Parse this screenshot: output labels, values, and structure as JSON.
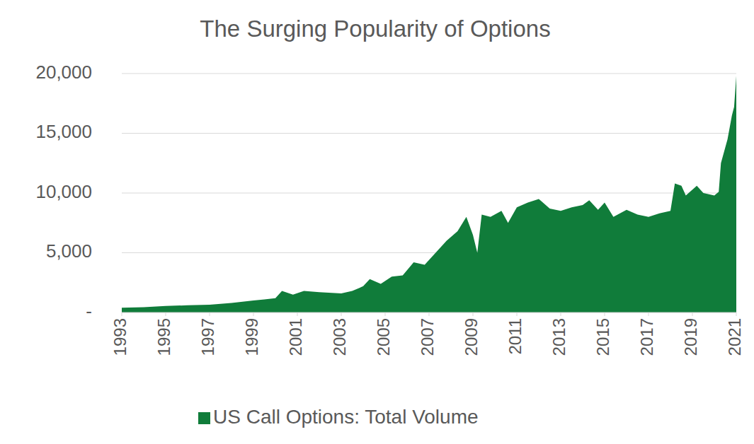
{
  "chart_data": {
    "type": "area",
    "title": "The Surging Popularity of Options",
    "x": [
      1993,
      1994,
      1995,
      1996,
      1997,
      1998,
      1999,
      1999.5,
      2000,
      2000.3,
      2000.8,
      2001.3,
      2002,
      2003,
      2003.5,
      2004,
      2004.3,
      2004.8,
      2005.3,
      2005.8,
      2006.3,
      2006.8,
      2007.3,
      2007.8,
      2008.3,
      2008.7,
      2009.0,
      2009.2,
      2009.4,
      2009.8,
      2010.3,
      2010.6,
      2011,
      2011.5,
      2012,
      2012.5,
      2013,
      2013.5,
      2014,
      2014.3,
      2014.7,
      2015,
      2015.4,
      2016,
      2016.5,
      2017,
      2017.5,
      2018,
      2018.2,
      2018.5,
      2018.7,
      2019.2,
      2019.5,
      2020,
      2020.2,
      2020.3,
      2020.6,
      2020.8,
      2020.9,
      2021
    ],
    "series": [
      {
        "name": "US Call Options: Total Volume",
        "color": "#107c3a",
        "values": [
          400,
          450,
          550,
          600,
          650,
          800,
          1000,
          1100,
          1200,
          1800,
          1500,
          1800,
          1700,
          1600,
          1800,
          2200,
          2800,
          2400,
          3000,
          3100,
          4200,
          4000,
          5000,
          6000,
          6800,
          8000,
          6500,
          5000,
          8200,
          8000,
          8500,
          7500,
          8800,
          9200,
          9500,
          8700,
          8500,
          8800,
          9000,
          9400,
          8600,
          9200,
          8000,
          8600,
          8200,
          8000,
          8300,
          8500,
          10800,
          10600,
          9800,
          10600,
          10000,
          9800,
          10100,
          12500,
          14500,
          16500,
          17200,
          19800
        ]
      }
    ],
    "xlim": [
      1993,
      2021
    ],
    "xticks": [
      1993,
      1995,
      1997,
      1999,
      2001,
      2003,
      2005,
      2007,
      2009,
      2011,
      2013,
      2015,
      2017,
      2019,
      2021
    ],
    "ylim": [
      0,
      20000
    ],
    "yticks": [
      {
        "value": 0,
        "label": "-"
      },
      {
        "value": 5000,
        "label": "5,000"
      },
      {
        "value": 10000,
        "label": "10,000"
      },
      {
        "value": 15000,
        "label": "15,000"
      },
      {
        "value": 20000,
        "label": "20,000"
      }
    ],
    "grid": true,
    "legend": "bottom"
  }
}
